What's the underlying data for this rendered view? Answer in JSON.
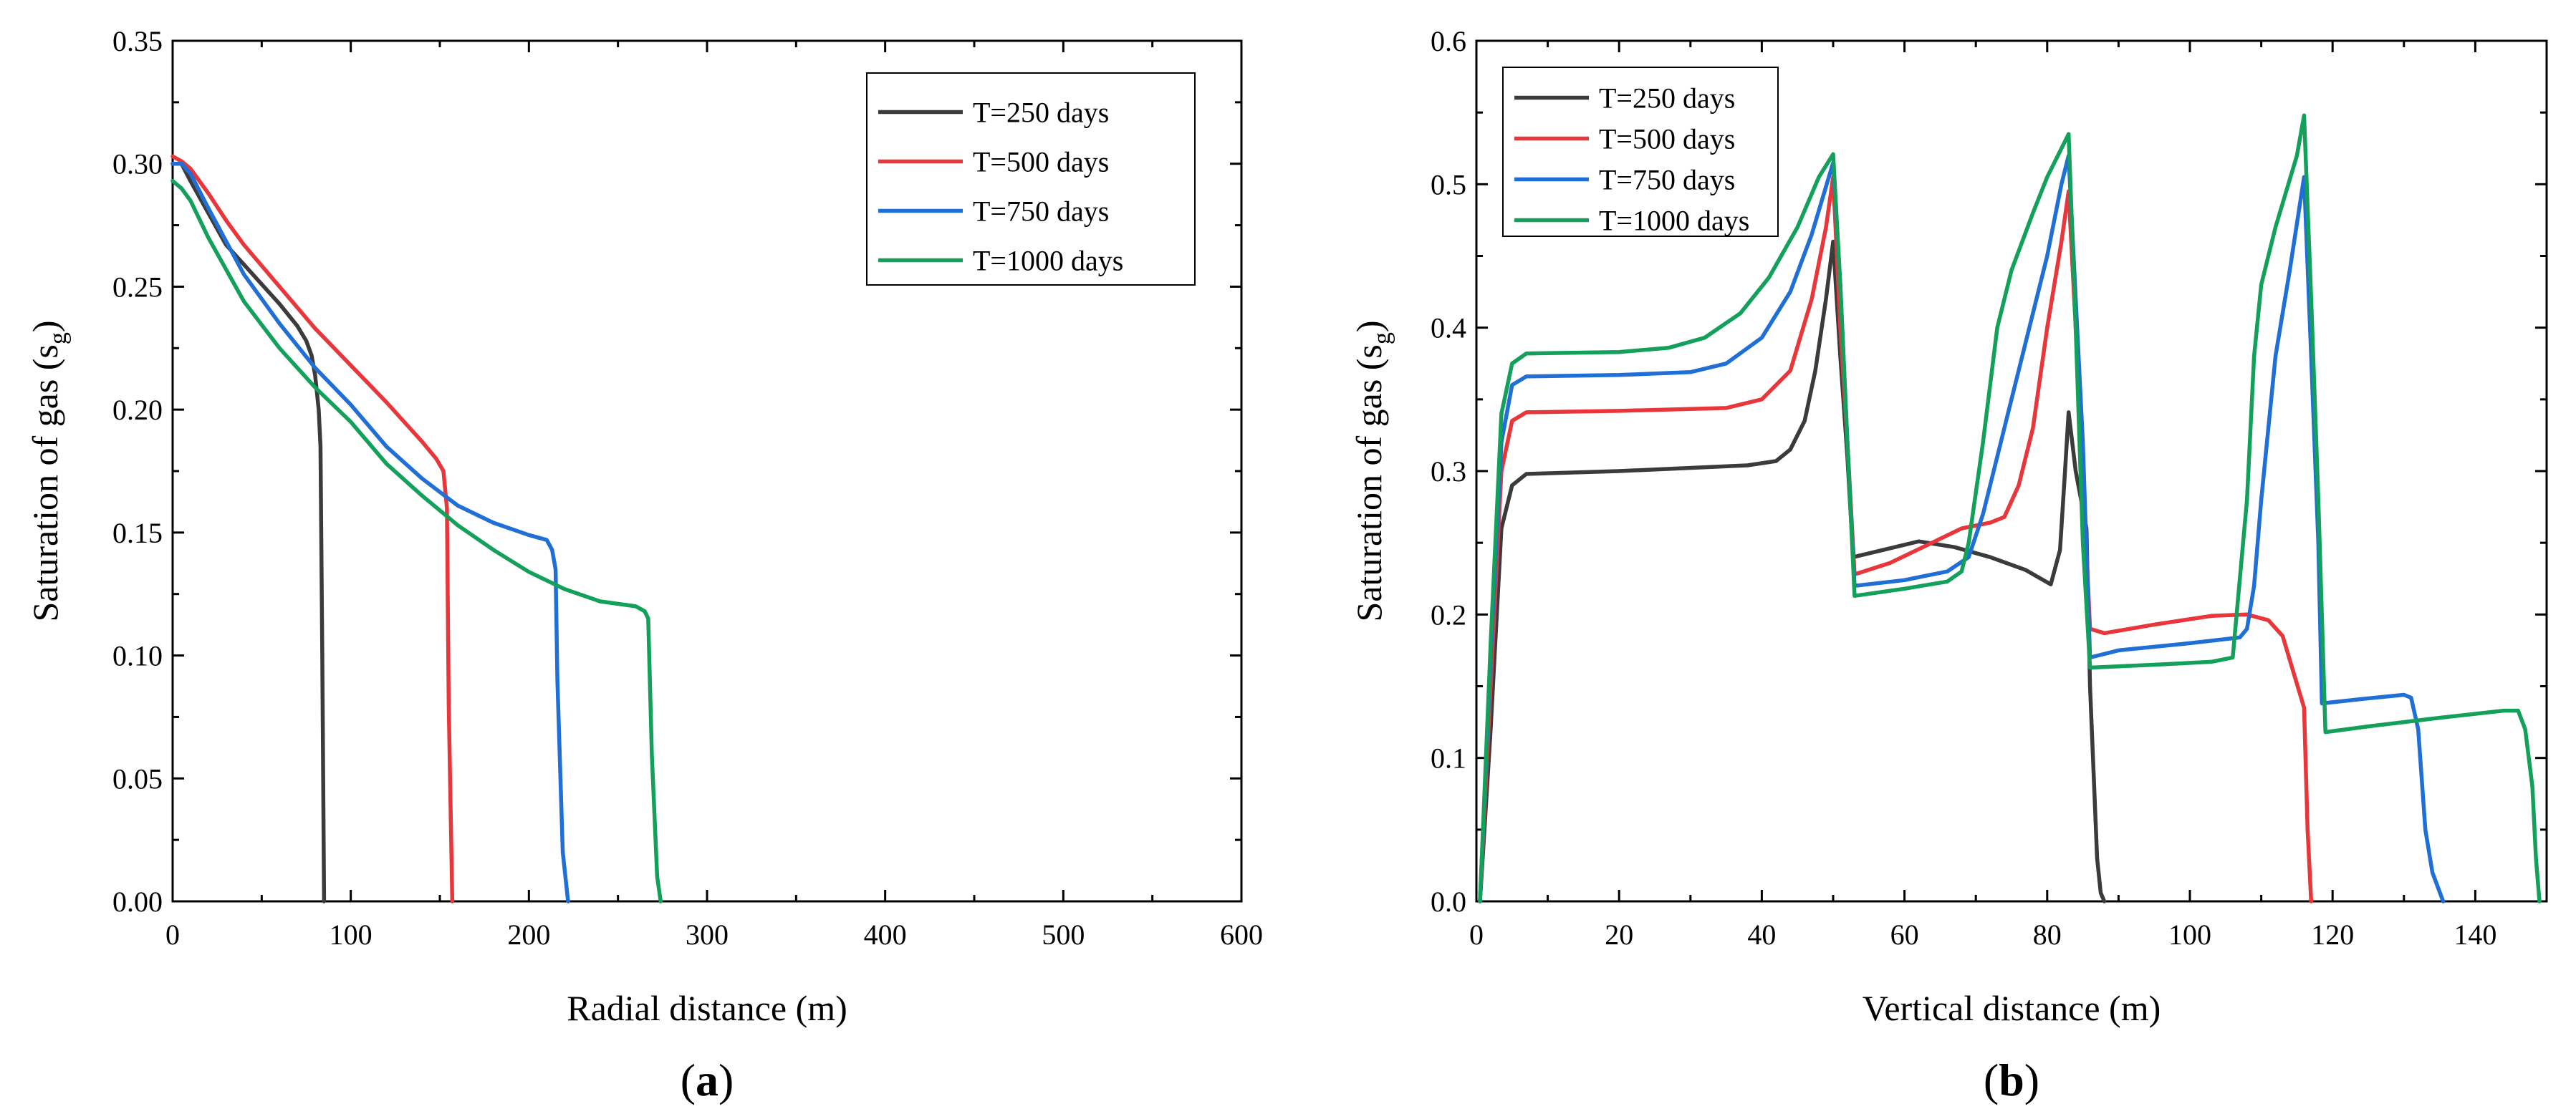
{
  "colors": {
    "T250": "#3b3b3b",
    "T500": "#e8363a",
    "T750": "#1f6fd6",
    "T1000": "#12a05a"
  },
  "chart_data": [
    {
      "type": "line",
      "panel": "(a)",
      "panel_letter": "a",
      "xlabel": "Radial distance (m)",
      "ylabel": "Saturation of gas (s",
      "ylabel_sub": "g",
      "ylabel_close": ")",
      "xlim": [
        0,
        600
      ],
      "ylim": [
        0,
        0.35
      ],
      "xticks": [
        0,
        100,
        200,
        300,
        400,
        500,
        600
      ],
      "yticks": [
        0,
        0.05,
        0.1,
        0.15,
        0.2,
        0.25,
        0.3,
        0.35
      ],
      "ytick_labels": [
        "0.00",
        "0.05",
        "0.10",
        "0.15",
        "0.20",
        "0.25",
        "0.30",
        "0.35"
      ],
      "legend_position": "top-right",
      "series": [
        {
          "name": "T=250 days",
          "color": "#3b3b3b",
          "points": [
            [
              0,
              0.3
            ],
            [
              5,
              0.3
            ],
            [
              10,
              0.293
            ],
            [
              20,
              0.28
            ],
            [
              30,
              0.267
            ],
            [
              40,
              0.259
            ],
            [
              50,
              0.251
            ],
            [
              60,
              0.243
            ],
            [
              70,
              0.234
            ],
            [
              75,
              0.228
            ],
            [
              78,
              0.222
            ],
            [
              80,
              0.214
            ],
            [
              82,
              0.2
            ],
            [
              83,
              0.185
            ],
            [
              84,
              0.1
            ],
            [
              85,
              0.0
            ]
          ]
        },
        {
          "name": "T=500 days",
          "color": "#e8363a",
          "points": [
            [
              0,
              0.303
            ],
            [
              5,
              0.301
            ],
            [
              10,
              0.298
            ],
            [
              20,
              0.288
            ],
            [
              30,
              0.277
            ],
            [
              40,
              0.267
            ],
            [
              60,
              0.25
            ],
            [
              80,
              0.233
            ],
            [
              100,
              0.218
            ],
            [
              120,
              0.203
            ],
            [
              140,
              0.187
            ],
            [
              148,
              0.18
            ],
            [
              152,
              0.175
            ],
            [
              154,
              0.16
            ],
            [
              155,
              0.08
            ],
            [
              157,
              0.0
            ]
          ]
        },
        {
          "name": "T=750 days",
          "color": "#1f6fd6",
          "points": [
            [
              0,
              0.3
            ],
            [
              5,
              0.3
            ],
            [
              10,
              0.296
            ],
            [
              20,
              0.282
            ],
            [
              40,
              0.255
            ],
            [
              60,
              0.235
            ],
            [
              80,
              0.217
            ],
            [
              100,
              0.202
            ],
            [
              120,
              0.185
            ],
            [
              140,
              0.172
            ],
            [
              160,
              0.161
            ],
            [
              180,
              0.154
            ],
            [
              200,
              0.149
            ],
            [
              210,
              0.147
            ],
            [
              213,
              0.143
            ],
            [
              215,
              0.135
            ],
            [
              216,
              0.09
            ],
            [
              219,
              0.02
            ],
            [
              222,
              0.0
            ]
          ]
        },
        {
          "name": "T=1000 days",
          "color": "#12a05a",
          "points": [
            [
              0,
              0.293
            ],
            [
              5,
              0.29
            ],
            [
              10,
              0.285
            ],
            [
              20,
              0.27
            ],
            [
              40,
              0.244
            ],
            [
              60,
              0.225
            ],
            [
              80,
              0.209
            ],
            [
              100,
              0.195
            ],
            [
              120,
              0.178
            ],
            [
              140,
              0.165
            ],
            [
              160,
              0.153
            ],
            [
              180,
              0.143
            ],
            [
              200,
              0.134
            ],
            [
              220,
              0.127
            ],
            [
              240,
              0.122
            ],
            [
              260,
              0.12
            ],
            [
              265,
              0.118
            ],
            [
              267,
              0.115
            ],
            [
              269,
              0.06
            ],
            [
              272,
              0.01
            ],
            [
              274,
              0.0
            ]
          ]
        }
      ]
    },
    {
      "type": "line",
      "panel": "(b)",
      "panel_letter": "b",
      "xlabel": "Vertical distance (m)",
      "ylabel": "Saturation of gas (s",
      "ylabel_sub": "g",
      "ylabel_close": ")",
      "xlim": [
        0,
        150
      ],
      "ylim": [
        0,
        0.6
      ],
      "xticks": [
        0,
        20,
        40,
        60,
        80,
        100,
        120,
        140
      ],
      "yticks": [
        0,
        0.1,
        0.2,
        0.3,
        0.4,
        0.5,
        0.6
      ],
      "ytick_labels": [
        "0.0",
        "0.1",
        "0.2",
        "0.3",
        "0.4",
        "0.5",
        "0.6"
      ],
      "legend_position": "top-left",
      "series": [
        {
          "name": "T=250 days",
          "color": "#3b3b3b",
          "points": [
            [
              0.5,
              0.0
            ],
            [
              2,
              0.12
            ],
            [
              3.5,
              0.26
            ],
            [
              5,
              0.29
            ],
            [
              7,
              0.298
            ],
            [
              20,
              0.3
            ],
            [
              38,
              0.304
            ],
            [
              42,
              0.307
            ],
            [
              44,
              0.315
            ],
            [
              46,
              0.335
            ],
            [
              47.5,
              0.37
            ],
            [
              49,
              0.42
            ],
            [
              50,
              0.46
            ],
            [
              51,
              0.38
            ],
            [
              52,
              0.31
            ],
            [
              52.8,
              0.24
            ],
            [
              57,
              0.245
            ],
            [
              62,
              0.251
            ],
            [
              67,
              0.247
            ],
            [
              72,
              0.24
            ],
            [
              77,
              0.231
            ],
            [
              80.5,
              0.221
            ],
            [
              81.8,
              0.245
            ],
            [
              82.5,
              0.3
            ],
            [
              83,
              0.341
            ],
            [
              84,
              0.3
            ],
            [
              85.5,
              0.26
            ],
            [
              86,
              0.15
            ],
            [
              87,
              0.03
            ],
            [
              87.5,
              0.006
            ],
            [
              88,
              0.0
            ]
          ]
        },
        {
          "name": "T=500 days",
          "color": "#e8363a",
          "points": [
            [
              0.5,
              0.0
            ],
            [
              2,
              0.15
            ],
            [
              3.5,
              0.3
            ],
            [
              5,
              0.335
            ],
            [
              7,
              0.341
            ],
            [
              20,
              0.342
            ],
            [
              35,
              0.344
            ],
            [
              40,
              0.35
            ],
            [
              44,
              0.37
            ],
            [
              47,
              0.42
            ],
            [
              49,
              0.47
            ],
            [
              50,
              0.505
            ],
            [
              51,
              0.4
            ],
            [
              52,
              0.32
            ],
            [
              53,
              0.228
            ],
            [
              58,
              0.236
            ],
            [
              63,
              0.248
            ],
            [
              68,
              0.26
            ],
            [
              72,
              0.264
            ],
            [
              74,
              0.268
            ],
            [
              76,
              0.29
            ],
            [
              78,
              0.33
            ],
            [
              80,
              0.4
            ],
            [
              82,
              0.46
            ],
            [
              83,
              0.495
            ],
            [
              84,
              0.4
            ],
            [
              85,
              0.3
            ],
            [
              86,
              0.19
            ],
            [
              88,
              0.187
            ],
            [
              95,
              0.193
            ],
            [
              103,
              0.199
            ],
            [
              108,
              0.2
            ],
            [
              111,
              0.196
            ],
            [
              113,
              0.185
            ],
            [
              114.5,
              0.16
            ],
            [
              116,
              0.135
            ],
            [
              116.5,
              0.05
            ],
            [
              117,
              0.0
            ]
          ]
        },
        {
          "name": "T=750 days",
          "color": "#1f6fd6",
          "points": [
            [
              0.5,
              0.0
            ],
            [
              2,
              0.17
            ],
            [
              3.5,
              0.32
            ],
            [
              5,
              0.36
            ],
            [
              7,
              0.366
            ],
            [
              20,
              0.367
            ],
            [
              30,
              0.369
            ],
            [
              35,
              0.375
            ],
            [
              40,
              0.393
            ],
            [
              44,
              0.425
            ],
            [
              47,
              0.465
            ],
            [
              50,
              0.515
            ],
            [
              51,
              0.43
            ],
            [
              52,
              0.32
            ],
            [
              53,
              0.22
            ],
            [
              60,
              0.224
            ],
            [
              66,
              0.23
            ],
            [
              69,
              0.24
            ],
            [
              71,
              0.27
            ],
            [
              74,
              0.33
            ],
            [
              77,
              0.39
            ],
            [
              80,
              0.45
            ],
            [
              82,
              0.5
            ],
            [
              83,
              0.52
            ],
            [
              84,
              0.42
            ],
            [
              85,
              0.32
            ],
            [
              86,
              0.17
            ],
            [
              90,
              0.175
            ],
            [
              100,
              0.18
            ],
            [
              107,
              0.184
            ],
            [
              108,
              0.19
            ],
            [
              109,
              0.22
            ],
            [
              110,
              0.28
            ],
            [
              112,
              0.38
            ],
            [
              114,
              0.44
            ],
            [
              116,
              0.505
            ],
            [
              117,
              0.38
            ],
            [
              118,
              0.25
            ],
            [
              118.5,
              0.138
            ],
            [
              124,
              0.141
            ],
            [
              130,
              0.144
            ],
            [
              131,
              0.142
            ],
            [
              132,
              0.12
            ],
            [
              133,
              0.05
            ],
            [
              134,
              0.02
            ],
            [
              135.5,
              0.0
            ]
          ]
        },
        {
          "name": "T=1000 days",
          "color": "#12a05a",
          "points": [
            [
              0.5,
              0.0
            ],
            [
              2,
              0.18
            ],
            [
              3.5,
              0.34
            ],
            [
              5,
              0.375
            ],
            [
              7,
              0.382
            ],
            [
              20,
              0.383
            ],
            [
              27,
              0.386
            ],
            [
              32,
              0.393
            ],
            [
              37,
              0.41
            ],
            [
              41,
              0.435
            ],
            [
              45,
              0.47
            ],
            [
              48,
              0.505
            ],
            [
              50,
              0.521
            ],
            [
              51,
              0.43
            ],
            [
              52,
              0.32
            ],
            [
              53,
              0.213
            ],
            [
              60,
              0.218
            ],
            [
              66,
              0.223
            ],
            [
              68,
              0.23
            ],
            [
              69,
              0.25
            ],
            [
              71,
              0.32
            ],
            [
              73,
              0.4
            ],
            [
              75,
              0.44
            ],
            [
              78,
              0.48
            ],
            [
              80,
              0.505
            ],
            [
              83,
              0.535
            ],
            [
              84,
              0.4
            ],
            [
              85,
              0.25
            ],
            [
              86,
              0.163
            ],
            [
              95,
              0.165
            ],
            [
              103,
              0.167
            ],
            [
              106,
              0.17
            ],
            [
              108,
              0.28
            ],
            [
              109,
              0.38
            ],
            [
              110,
              0.43
            ],
            [
              112,
              0.47
            ],
            [
              115,
              0.52
            ],
            [
              116,
              0.548
            ],
            [
              117,
              0.42
            ],
            [
              118,
              0.28
            ],
            [
              119,
              0.118
            ],
            [
              125,
              0.122
            ],
            [
              135,
              0.128
            ],
            [
              144,
              0.133
            ],
            [
              146,
              0.133
            ],
            [
              147,
              0.12
            ],
            [
              148,
              0.08
            ],
            [
              148.5,
              0.03
            ],
            [
              149,
              0.0
            ]
          ]
        }
      ]
    }
  ]
}
